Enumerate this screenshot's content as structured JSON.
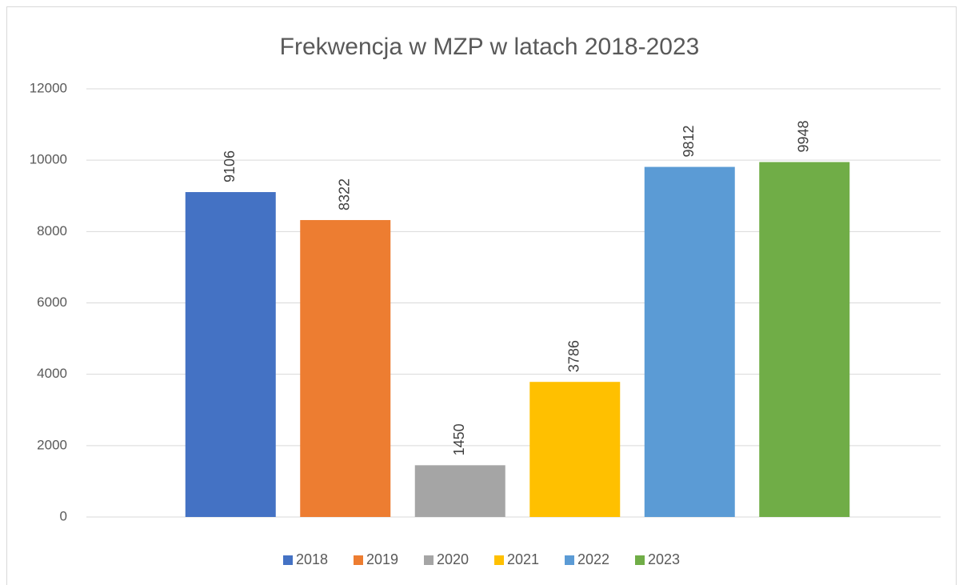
{
  "chart_data": {
    "type": "bar",
    "title": "Frekwencja w MZP w latach 2018-2023",
    "categories": [
      null
    ],
    "series": [
      {
        "name": "2018",
        "color": "#4472c4",
        "values": [
          9106
        ]
      },
      {
        "name": "2019",
        "color": "#ed7d31",
        "values": [
          8322
        ]
      },
      {
        "name": "2020",
        "color": "#a5a5a5",
        "values": [
          1450
        ]
      },
      {
        "name": "2021",
        "color": "#ffc000",
        "values": [
          3786
        ]
      },
      {
        "name": "2022",
        "color": "#5b9bd5",
        "values": [
          9812
        ]
      },
      {
        "name": "2023",
        "color": "#70ad47",
        "values": [
          9948
        ]
      }
    ],
    "ylim": [
      0,
      12000
    ],
    "yticks": [
      0,
      2000,
      4000,
      6000,
      8000,
      10000,
      12000
    ],
    "grid": true,
    "legend": "bottom"
  }
}
